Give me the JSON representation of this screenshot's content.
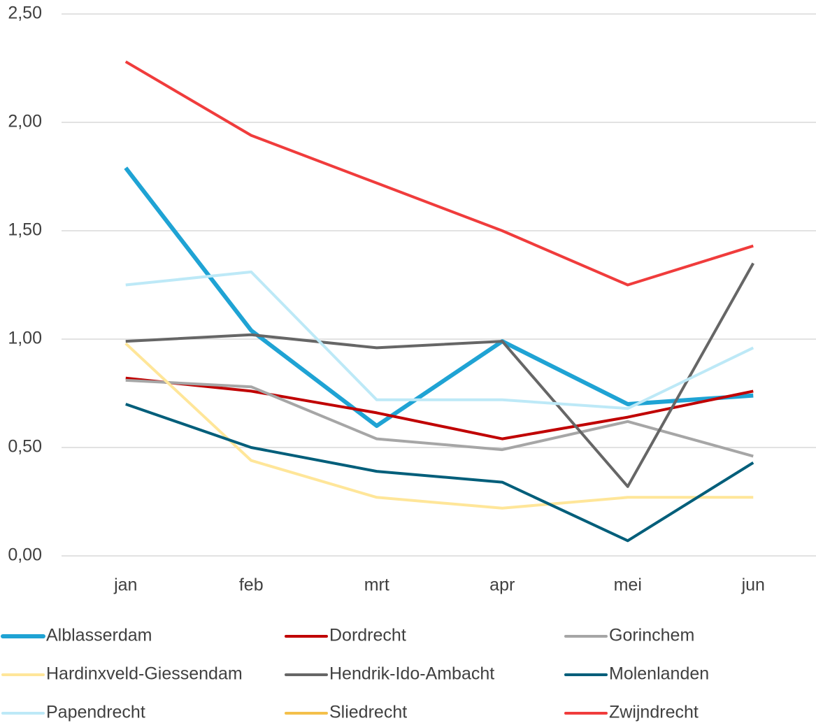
{
  "chart_data": {
    "type": "line",
    "categories": [
      "jan",
      "feb",
      "mrt",
      "apr",
      "mei",
      "jun"
    ],
    "series": [
      {
        "name": "Alblasserdam",
        "color": "#1fa3d4",
        "line_width": 6,
        "values": [
          1.79,
          1.04,
          0.6,
          0.99,
          0.7,
          0.74
        ]
      },
      {
        "name": "Dordrecht",
        "color": "#c00000",
        "line_width": 4,
        "values": [
          0.82,
          0.76,
          0.66,
          0.54,
          0.64,
          0.76
        ]
      },
      {
        "name": "Gorinchem",
        "color": "#a6a6a6",
        "line_width": 4,
        "values": [
          0.81,
          0.78,
          0.54,
          0.49,
          0.62,
          0.46
        ]
      },
      {
        "name": "Hardinxveld-Giessendam",
        "color": "#ffe699",
        "line_width": 4,
        "values": [
          0.98,
          0.44,
          0.27,
          0.22,
          0.27,
          0.27
        ]
      },
      {
        "name": "Hendrik-Ido-Ambacht",
        "color": "#666666",
        "line_width": 4,
        "values": [
          0.99,
          1.02,
          0.96,
          0.99,
          0.32,
          1.35
        ]
      },
      {
        "name": "Molenlanden",
        "color": "#005e7a",
        "line_width": 4,
        "values": [
          0.7,
          0.5,
          0.39,
          0.34,
          0.07,
          0.43
        ]
      },
      {
        "name": "Papendrecht",
        "color": "#bde9f7",
        "line_width": 4,
        "values": [
          1.25,
          1.31,
          0.72,
          0.72,
          0.68,
          0.96
        ]
      },
      {
        "name": "Sliedrecht",
        "color": "#f4c04a",
        "line_width": 4,
        "values": [
          null,
          null,
          null,
          null,
          null,
          null
        ]
      },
      {
        "name": "Zwijndrecht",
        "color": "#f03c3c",
        "line_width": 4,
        "values": [
          2.28,
          1.94,
          1.72,
          1.5,
          1.25,
          1.43
        ]
      }
    ],
    "ylim": [
      0,
      2.5
    ],
    "yticks": [
      {
        "value": 0,
        "label": "0,00"
      },
      {
        "value": 0.5,
        "label": "0,50"
      },
      {
        "value": 1,
        "label": "1,00"
      },
      {
        "value": 1.5,
        "label": "1,50"
      },
      {
        "value": 2,
        "label": "2,00"
      },
      {
        "value": 2.5,
        "label": "2,50"
      }
    ],
    "grid": true,
    "legend": "bottom"
  }
}
